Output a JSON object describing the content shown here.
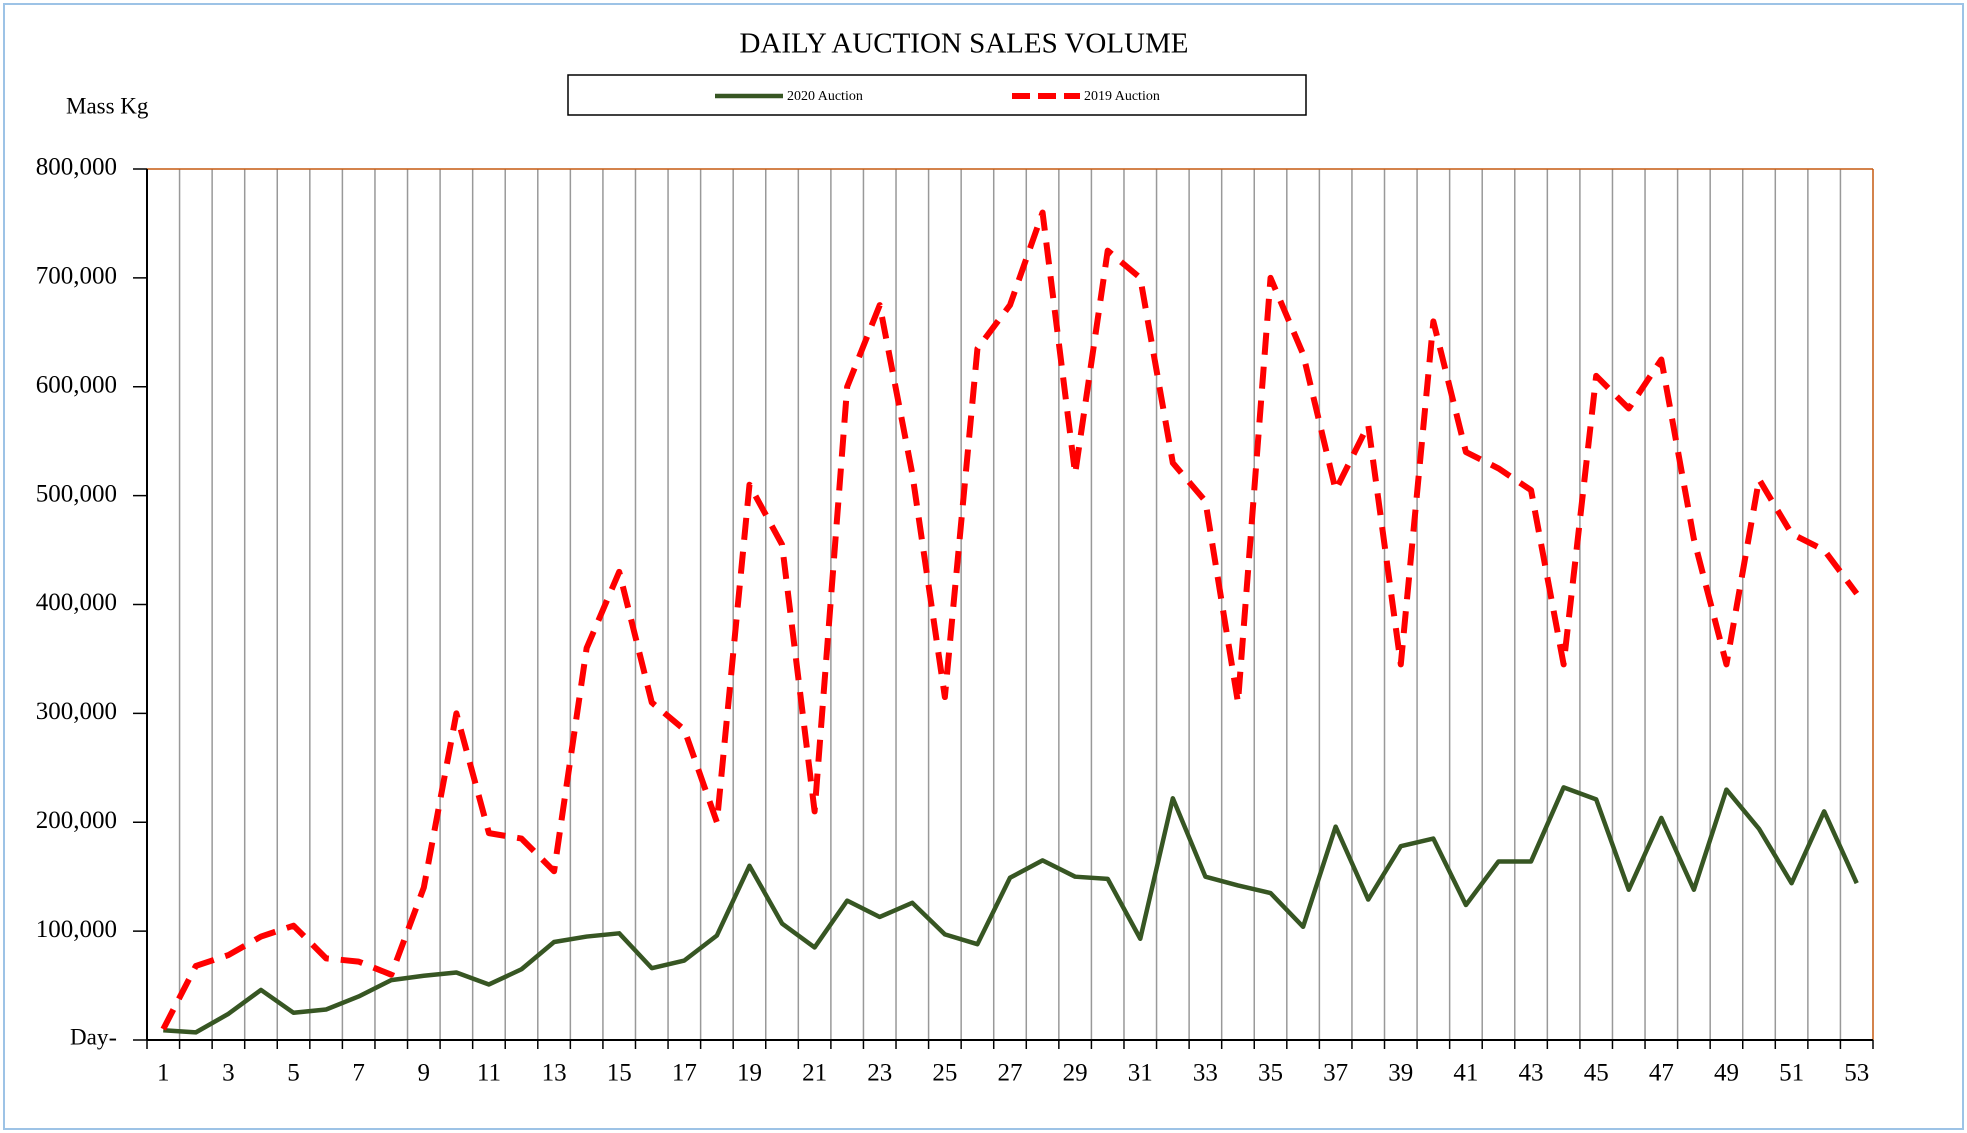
{
  "chart_data": {
    "type": "line",
    "title": "DAILY AUCTION SALES VOLUME",
    "y_label": "Mass Kg",
    "x_label": "Day",
    "categories": [
      1,
      null,
      3,
      null,
      5,
      null,
      7,
      null,
      9,
      null,
      11,
      null,
      13,
      null,
      15,
      null,
      17,
      null,
      19,
      null,
      21,
      null,
      23,
      null,
      25,
      null,
      27,
      null,
      29,
      null,
      31,
      null,
      33,
      null,
      35,
      null,
      37,
      null,
      39,
      null,
      41,
      null,
      43,
      null,
      45,
      null,
      47,
      null,
      49,
      null,
      51,
      null,
      53
    ],
    "series": [
      {
        "name": "2020 Auction",
        "color": "#375623",
        "dashed": false,
        "values": [
          9000,
          7000,
          24000,
          46000,
          25000,
          28000,
          40000,
          55000,
          59000,
          62000,
          51000,
          65000,
          90000,
          95000,
          98000,
          66000,
          73000,
          96000,
          160000,
          107000,
          85000,
          128000,
          113000,
          126000,
          97000,
          88000,
          149000,
          165000,
          150000,
          148000,
          93000,
          222000,
          150000,
          142000,
          135000,
          104000,
          196000,
          129000,
          178000,
          185000,
          124000,
          164000,
          164000,
          232000,
          221000,
          138000,
          204000,
          138000,
          230000,
          194000,
          144000,
          210000,
          144000
        ]
      },
      {
        "name": "2019 Auction",
        "color": "#ff0000",
        "dashed": true,
        "values": [
          10000,
          68000,
          78000,
          95000,
          105000,
          75000,
          72000,
          60000,
          140000,
          300000,
          190000,
          185000,
          155000,
          360000,
          430000,
          310000,
          285000,
          200000,
          510000,
          455000,
          210000,
          600000,
          675000,
          520000,
          315000,
          635000,
          675000,
          760000,
          520000,
          725000,
          700000,
          530000,
          495000,
          310000,
          700000,
          630000,
          505000,
          565000,
          345000,
          660000,
          540000,
          525000,
          505000,
          345000,
          610000,
          580000,
          625000,
          460000,
          345000,
          515000,
          465000,
          450000,
          410000
        ]
      }
    ],
    "ylim": [
      0,
      800000
    ],
    "yticks": [
      {
        "value": 0,
        "label": "-"
      },
      {
        "value": 100000,
        "label": "100,000"
      },
      {
        "value": 200000,
        "label": "200,000"
      },
      {
        "value": 300000,
        "label": "300,000"
      },
      {
        "value": 400000,
        "label": "400,000"
      },
      {
        "value": 500000,
        "label": "500,000"
      },
      {
        "value": 600000,
        "label": "600,000"
      },
      {
        "value": 700000,
        "label": "700,000"
      },
      {
        "value": 800000,
        "label": "800,000"
      }
    ],
    "grid": true,
    "legend": "top"
  }
}
